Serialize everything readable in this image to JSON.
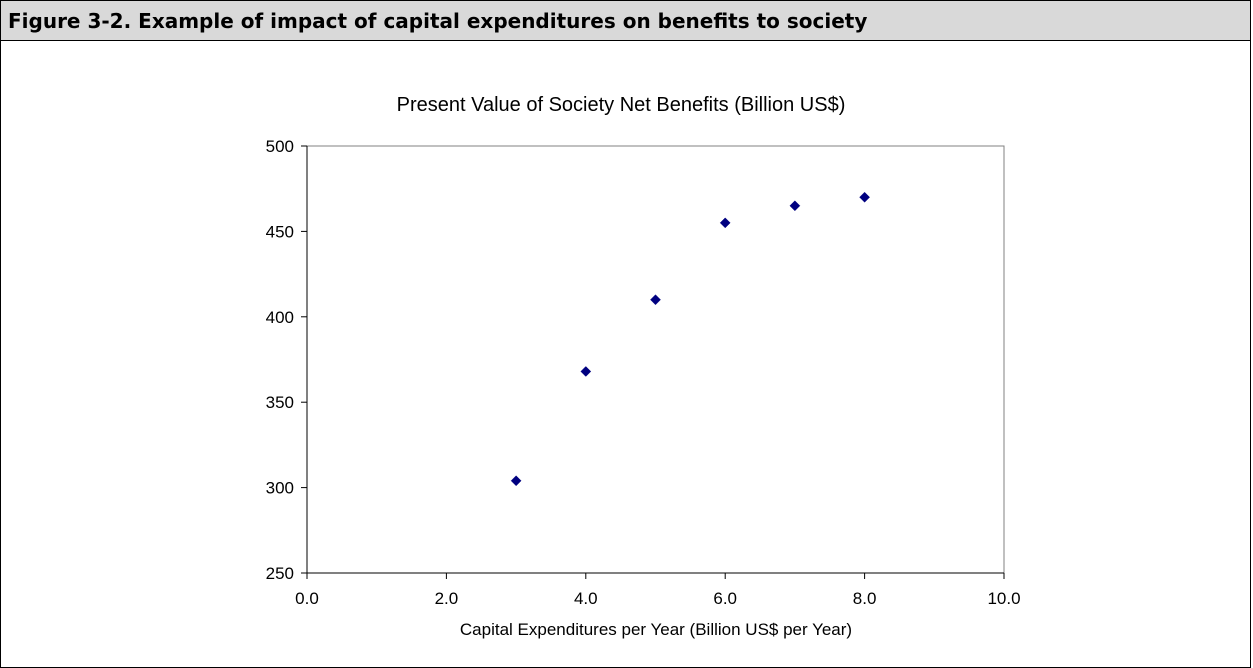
{
  "figure": {
    "caption": "Figure 3-2. Example of impact of capital expenditures on benefits to society"
  },
  "chart_data": {
    "type": "scatter",
    "title": "Present Value of Society Net Benefits  (Billion US$)",
    "xlabel": "Capital Expenditures per Year (Billion US$ per Year)",
    "ylabel": "",
    "xlim": [
      0,
      10
    ],
    "ylim": [
      250,
      500
    ],
    "x_ticks": [
      "0.0",
      "2.0",
      "4.0",
      "6.0",
      "8.0",
      "10.0"
    ],
    "y_ticks": [
      "250",
      "300",
      "350",
      "400",
      "450",
      "500"
    ],
    "grid": false,
    "legend": "none",
    "series": [
      {
        "x": [
          3,
          4,
          5,
          6,
          7,
          8
        ],
        "y": [
          304,
          368,
          410,
          455,
          465,
          470
        ]
      }
    ],
    "colors": {
      "marker": "#000080",
      "axis": "#000000",
      "plot_border": "#808080"
    }
  }
}
